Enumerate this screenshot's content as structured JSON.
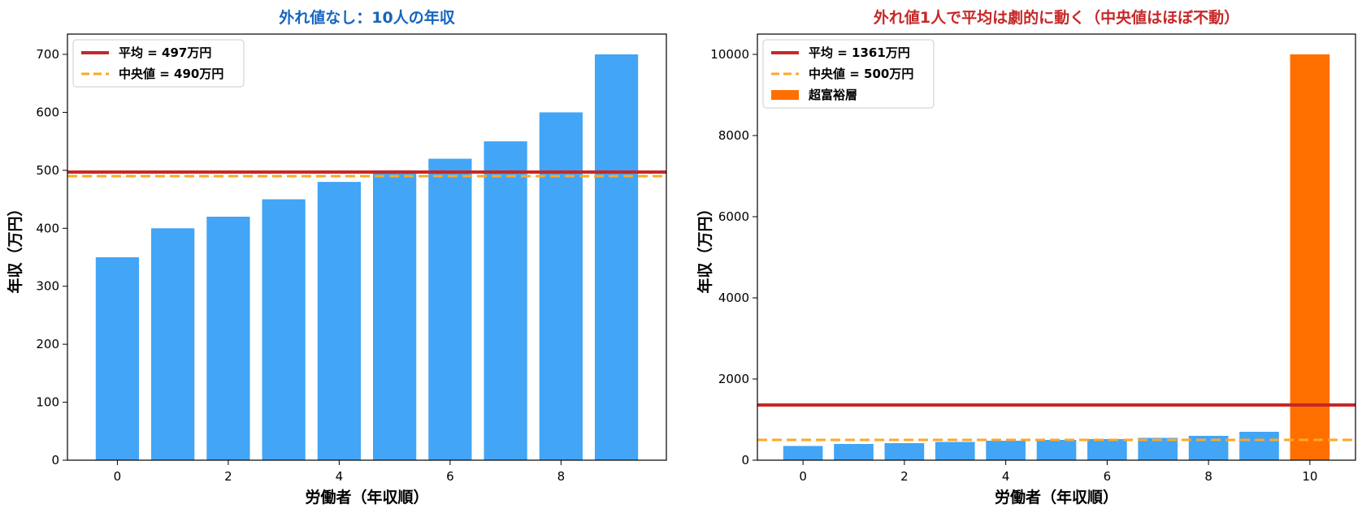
{
  "chart_data": [
    {
      "type": "bar",
      "title": "外れ値なし：10人の年収",
      "title_color": "#1565c0",
      "xlabel": "労働者（年収順）",
      "ylabel": "年収（万円）",
      "x": [
        0,
        1,
        2,
        3,
        4,
        5,
        6,
        7,
        8,
        9
      ],
      "values": [
        350,
        400,
        420,
        450,
        480,
        500,
        520,
        550,
        600,
        700
      ],
      "bar_color": "#42a5f5",
      "xlim": [
        -0.9,
        9.9
      ],
      "ylim": [
        0,
        735
      ],
      "xticks": [
        0,
        2,
        4,
        6,
        8
      ],
      "yticks": [
        0,
        100,
        200,
        300,
        400,
        500,
        600,
        700
      ],
      "hlines": [
        {
          "label": "平均 = 497万円",
          "value": 497,
          "color": "#c62828",
          "style": "solid"
        },
        {
          "label": "中央値 = 490万円",
          "value": 490,
          "color": "#ffa726",
          "style": "dashed"
        }
      ],
      "legend": "top-left",
      "grid": false
    },
    {
      "type": "bar",
      "title": "外れ値1人で平均は劇的に動く（中央値はほぼ不動）",
      "title_color": "#c62828",
      "xlabel": "労働者（年収順）",
      "ylabel": "年収（万円）",
      "x": [
        0,
        1,
        2,
        3,
        4,
        5,
        6,
        7,
        8,
        9,
        10
      ],
      "values": [
        350,
        400,
        420,
        450,
        480,
        500,
        520,
        550,
        600,
        700,
        10000
      ],
      "bar_color": "#42a5f5",
      "outlier": {
        "index": 10,
        "label": "超富裕層",
        "color": "#ff6f00"
      },
      "xlim": [
        -0.9,
        10.9
      ],
      "ylim": [
        0,
        10500
      ],
      "xticks": [
        0,
        2,
        4,
        6,
        8,
        10
      ],
      "yticks": [
        0,
        2000,
        4000,
        6000,
        8000,
        10000
      ],
      "hlines": [
        {
          "label": "平均 = 1361万円",
          "value": 1361,
          "color": "#c62828",
          "style": "solid"
        },
        {
          "label": "中央値 = 500万円",
          "value": 500,
          "color": "#ffa726",
          "style": "dashed"
        }
      ],
      "legend": "top-left",
      "grid": false
    }
  ]
}
